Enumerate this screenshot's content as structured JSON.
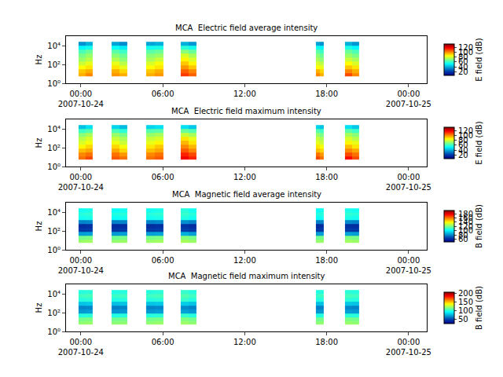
{
  "chart_data": [
    {
      "type": "heatmap",
      "title": "MCA  Electric field average intensity",
      "y_label": "Hz",
      "log": "y",
      "xlim": [
        "2007-10-23 22:55",
        "2007-10-25 01:20"
      ],
      "xticks": [
        {
          "value": "2007-10-24 00:00",
          "label": "00:00\n2007-10-24"
        },
        {
          "value": "2007-10-24 06:00",
          "label": "06:00"
        },
        {
          "value": "2007-10-24 12:00",
          "label": "12:00"
        },
        {
          "value": "2007-10-24 18:00",
          "label": "18:00"
        },
        {
          "value": "2007-10-25 00:00",
          "label": "00:00\n2007-10-25"
        }
      ],
      "ylim": [
        1,
        100000
      ],
      "yticks": [
        {
          "value": 1,
          "label": "10⁰"
        },
        {
          "value": 100,
          "label": "10²"
        },
        {
          "value": 10000,
          "label": "10⁴"
        }
      ],
      "x": [
        "2007-10-23 23:50",
        "2007-10-24 00:20",
        "2007-10-24 00:52",
        "2007-10-24 02:14",
        "2007-10-24 02:48",
        "2007-10-24 03:24",
        "2007-10-24 04:46",
        "2007-10-24 05:24",
        "2007-10-24 06:02",
        "2007-10-24 07:18",
        "2007-10-24 07:52",
        "2007-10-24 08:27",
        "2007-10-24 17:14",
        "2007-10-24 17:30",
        "2007-10-24 17:48",
        "2007-10-24 19:22",
        "2007-10-24 19:52",
        "2007-10-24 20:24"
      ],
      "y": [
        5,
        12,
        30,
        80,
        200,
        500,
        1300,
        3500,
        10000,
        25000
      ],
      "z": [
        [
          95,
          100,
          null,
          98,
          95,
          null,
          95,
          98,
          null,
          110,
          105,
          null,
          100,
          95,
          null,
          108,
          100
        ],
        [
          92,
          95,
          null,
          95,
          90,
          null,
          92,
          95,
          null,
          105,
          100,
          null,
          95,
          90,
          null,
          100,
          95
        ],
        [
          85,
          88,
          null,
          88,
          82,
          null,
          85,
          88,
          null,
          98,
          92,
          null,
          85,
          82,
          null,
          92,
          88
        ],
        [
          78,
          82,
          null,
          82,
          76,
          null,
          80,
          84,
          null,
          92,
          86,
          null,
          80,
          76,
          null,
          85,
          80
        ],
        [
          72,
          76,
          null,
          75,
          70,
          null,
          74,
          78,
          null,
          86,
          80,
          null,
          74,
          70,
          null,
          78,
          74
        ],
        [
          68,
          72,
          null,
          70,
          66,
          null,
          70,
          72,
          null,
          80,
          74,
          null,
          70,
          66,
          null,
          72,
          68
        ],
        [
          62,
          66,
          null,
          64,
          60,
          null,
          64,
          66,
          null,
          70,
          66,
          null,
          64,
          60,
          null,
          66,
          62
        ],
        [
          52,
          55,
          null,
          54,
          50,
          null,
          55,
          56,
          null,
          58,
          55,
          null,
          55,
          52,
          null,
          56,
          52
        ],
        [
          35,
          40,
          null,
          38,
          34,
          null,
          38,
          40,
          null,
          40,
          36,
          null,
          38,
          35,
          null,
          40,
          36
        ]
      ],
      "zlabel": "E field (dB)",
      "zlim": [
        5,
        133
      ],
      "zticks": [
        20,
        40,
        60,
        80,
        100,
        120
      ]
    },
    {
      "type": "heatmap",
      "title": "MCA  Electric field maximum intensity",
      "y_label": "Hz",
      "log": "y",
      "xlim": [
        "2007-10-23 22:55",
        "2007-10-25 01:20"
      ],
      "xticks": [
        {
          "value": "2007-10-24 00:00",
          "label": "00:00\n2007-10-24"
        },
        {
          "value": "2007-10-24 06:00",
          "label": "06:00"
        },
        {
          "value": "2007-10-24 12:00",
          "label": "12:00"
        },
        {
          "value": "2007-10-24 18:00",
          "label": "18:00"
        },
        {
          "value": "2007-10-25 00:00",
          "label": "00:00\n2007-10-25"
        }
      ],
      "ylim": [
        1,
        100000
      ],
      "yticks": [
        {
          "value": 1,
          "label": "10⁰"
        },
        {
          "value": 100,
          "label": "10²"
        },
        {
          "value": 10000,
          "label": "10⁴"
        }
      ],
      "x": [
        "2007-10-23 23:50",
        "2007-10-24 00:20",
        "2007-10-24 00:52",
        "2007-10-24 02:14",
        "2007-10-24 02:48",
        "2007-10-24 03:24",
        "2007-10-24 04:46",
        "2007-10-24 05:24",
        "2007-10-24 06:02",
        "2007-10-24 07:18",
        "2007-10-24 07:52",
        "2007-10-24 08:27",
        "2007-10-24 17:14",
        "2007-10-24 17:30",
        "2007-10-24 17:48",
        "2007-10-24 19:22",
        "2007-10-24 19:52",
        "2007-10-24 20:24"
      ],
      "y": [
        5,
        12,
        30,
        80,
        200,
        500,
        1300,
        3500,
        10000,
        25000
      ],
      "z": [
        [
          103,
          108,
          null,
          106,
          103,
          null,
          103,
          106,
          null,
          118,
          113,
          null,
          108,
          103,
          null,
          116,
          108
        ],
        [
          100,
          103,
          null,
          103,
          98,
          null,
          100,
          103,
          null,
          113,
          108,
          null,
          103,
          98,
          null,
          108,
          103
        ],
        [
          93,
          96,
          null,
          96,
          90,
          null,
          93,
          96,
          null,
          106,
          100,
          null,
          93,
          90,
          null,
          100,
          96
        ],
        [
          86,
          90,
          null,
          90,
          84,
          null,
          88,
          92,
          null,
          100,
          94,
          null,
          88,
          84,
          null,
          93,
          88
        ],
        [
          80,
          84,
          null,
          83,
          78,
          null,
          82,
          86,
          null,
          94,
          88,
          null,
          82,
          78,
          null,
          86,
          82
        ],
        [
          76,
          80,
          null,
          78,
          74,
          null,
          78,
          80,
          null,
          88,
          82,
          null,
          78,
          74,
          null,
          80,
          76
        ],
        [
          70,
          74,
          null,
          72,
          68,
          null,
          72,
          74,
          null,
          78,
          74,
          null,
          72,
          68,
          null,
          74,
          70
        ],
        [
          60,
          63,
          null,
          62,
          58,
          null,
          63,
          64,
          null,
          66,
          63,
          null,
          63,
          60,
          null,
          64,
          60
        ],
        [
          43,
          48,
          null,
          46,
          42,
          null,
          46,
          48,
          null,
          48,
          44,
          null,
          46,
          43,
          null,
          48,
          44
        ]
      ],
      "zlabel": "E field (dB)",
      "zlim": [
        5,
        133
      ],
      "zticks": [
        20,
        40,
        60,
        80,
        100,
        120
      ]
    },
    {
      "type": "heatmap",
      "title": "MCA  Magnetic field average intensity",
      "y_label": "Hz",
      "log": "y",
      "xlim": [
        "2007-10-23 22:55",
        "2007-10-25 01:20"
      ],
      "xticks": [
        {
          "value": "2007-10-24 00:00",
          "label": "00:00\n2007-10-24"
        },
        {
          "value": "2007-10-24 06:00",
          "label": "06:00"
        },
        {
          "value": "2007-10-24 12:00",
          "label": "12:00"
        },
        {
          "value": "2007-10-24 18:00",
          "label": "18:00"
        },
        {
          "value": "2007-10-25 00:00",
          "label": "00:00\n2007-10-25"
        }
      ],
      "ylim": [
        1,
        100000
      ],
      "yticks": [
        {
          "value": 1,
          "label": "10⁰"
        },
        {
          "value": 100,
          "label": "10²"
        },
        {
          "value": 10000,
          "label": "10⁴"
        }
      ],
      "x": [
        "2007-10-23 23:50",
        "2007-10-24 00:20",
        "2007-10-24 00:52",
        "2007-10-24 02:14",
        "2007-10-24 02:48",
        "2007-10-24 03:24",
        "2007-10-24 04:46",
        "2007-10-24 05:24",
        "2007-10-24 06:02",
        "2007-10-24 07:18",
        "2007-10-24 07:52",
        "2007-10-24 08:27",
        "2007-10-24 17:14",
        "2007-10-24 17:30",
        "2007-10-24 17:48",
        "2007-10-24 19:22",
        "2007-10-24 19:52",
        "2007-10-24 20:24"
      ],
      "y": [
        5,
        12,
        30,
        80,
        200,
        500,
        1300,
        3500,
        10000,
        25000
      ],
      "z": [
        [
          125,
          126,
          null,
          124,
          125,
          null,
          125,
          126,
          null,
          127,
          125,
          null,
          124,
          125,
          null,
          126,
          125
        ],
        [
          120,
          121,
          null,
          119,
          120,
          null,
          120,
          121,
          null,
          122,
          120,
          null,
          119,
          120,
          null,
          121,
          120
        ],
        [
          85,
          86,
          null,
          84,
          85,
          null,
          85,
          86,
          null,
          88,
          85,
          null,
          84,
          85,
          null,
          86,
          85
        ],
        [
          65,
          66,
          null,
          64,
          65,
          null,
          65,
          66,
          null,
          67,
          65,
          null,
          64,
          65,
          null,
          66,
          65
        ],
        [
          62,
          63,
          null,
          61,
          62,
          null,
          62,
          63,
          null,
          64,
          62,
          null,
          61,
          62,
          null,
          63,
          62
        ],
        [
          80,
          81,
          null,
          79,
          80,
          null,
          80,
          81,
          null,
          82,
          80,
          null,
          79,
          80,
          null,
          81,
          80
        ],
        [
          105,
          106,
          null,
          104,
          105,
          null,
          105,
          106,
          null,
          107,
          105,
          null,
          104,
          105,
          null,
          106,
          105
        ],
        [
          108,
          109,
          null,
          107,
          108,
          null,
          108,
          109,
          null,
          110,
          108,
          null,
          107,
          108,
          null,
          109,
          108
        ],
        [
          105,
          106,
          null,
          104,
          105,
          null,
          105,
          106,
          null,
          108,
          105,
          null,
          104,
          105,
          null,
          106,
          105
        ]
      ],
      "zlabel": "B field (dB)",
      "zlim": [
        48,
        195
      ],
      "zticks": [
        60,
        80,
        100,
        120,
        140,
        160,
        180
      ]
    },
    {
      "type": "heatmap",
      "title": "MCA  Magnetic field maximum intensity",
      "y_label": "Hz",
      "log": "y",
      "xlim": [
        "2007-10-23 22:55",
        "2007-10-25 01:20"
      ],
      "xticks": [
        {
          "value": "2007-10-24 00:00",
          "label": "00:00\n2007-10-24"
        },
        {
          "value": "2007-10-24 06:00",
          "label": "06:00"
        },
        {
          "value": "2007-10-24 12:00",
          "label": "12:00"
        },
        {
          "value": "2007-10-24 18:00",
          "label": "18:00"
        },
        {
          "value": "2007-10-25 00:00",
          "label": "00:00\n2007-10-25"
        }
      ],
      "ylim": [
        1,
        100000
      ],
      "yticks": [
        {
          "value": 1,
          "label": "10⁰"
        },
        {
          "value": 100,
          "label": "10²"
        },
        {
          "value": 10000,
          "label": "10⁴"
        }
      ],
      "x": [
        "2007-10-23 23:50",
        "2007-10-24 00:20",
        "2007-10-24 00:52",
        "2007-10-24 02:14",
        "2007-10-24 02:48",
        "2007-10-24 03:24",
        "2007-10-24 04:46",
        "2007-10-24 05:24",
        "2007-10-24 06:02",
        "2007-10-24 07:18",
        "2007-10-24 07:52",
        "2007-10-24 08:27",
        "2007-10-24 17:14",
        "2007-10-24 17:30",
        "2007-10-24 17:48",
        "2007-10-24 19:22",
        "2007-10-24 19:52",
        "2007-10-24 20:24"
      ],
      "y": [
        5,
        12,
        30,
        80,
        200,
        500,
        1300,
        3500,
        10000,
        25000
      ],
      "z": [
        [
          120,
          121,
          null,
          119,
          120,
          null,
          120,
          121,
          null,
          122,
          120,
          null,
          119,
          120,
          null,
          121,
          120
        ],
        [
          115,
          116,
          null,
          114,
          115,
          null,
          115,
          116,
          null,
          117,
          115,
          null,
          114,
          115,
          null,
          116,
          115
        ],
        [
          100,
          101,
          null,
          99,
          100,
          null,
          100,
          101,
          null,
          103,
          100,
          null,
          99,
          100,
          null,
          101,
          100
        ],
        [
          70,
          71,
          null,
          69,
          70,
          null,
          70,
          71,
          null,
          72,
          70,
          null,
          69,
          70,
          null,
          71,
          70
        ],
        [
          65,
          66,
          null,
          64,
          65,
          null,
          65,
          66,
          null,
          67,
          65,
          null,
          64,
          65,
          null,
          66,
          65
        ],
        [
          80,
          81,
          null,
          79,
          80,
          null,
          80,
          81,
          null,
          82,
          80,
          null,
          79,
          80,
          null,
          81,
          80
        ],
        [
          100,
          101,
          null,
          99,
          100,
          null,
          100,
          101,
          null,
          103,
          100,
          null,
          99,
          100,
          null,
          101,
          100
        ],
        [
          105,
          106,
          null,
          104,
          105,
          null,
          105,
          106,
          null,
          108,
          105,
          null,
          104,
          105,
          null,
          106,
          105
        ],
        [
          100,
          101,
          null,
          99,
          100,
          null,
          100,
          101,
          null,
          103,
          100,
          null,
          99,
          100,
          null,
          101,
          100
        ]
      ],
      "zlabel": "B field (dB)",
      "zlim": [
        25,
        209
      ],
      "zticks": [
        50,
        100,
        150,
        200
      ]
    }
  ]
}
